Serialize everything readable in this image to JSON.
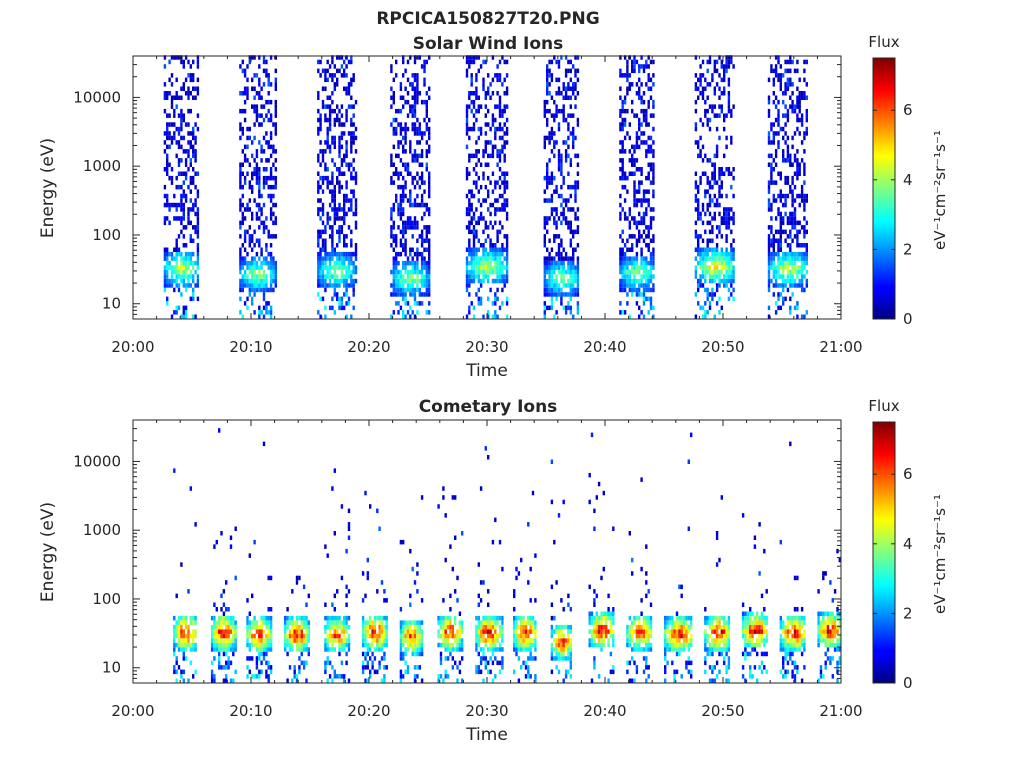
{
  "figure_title": "RPCICA150827T20.PNG",
  "chart_data": [
    {
      "type": "heatmap",
      "title": "Solar Wind Ions",
      "xlabel": "Time",
      "ylabel": "Energy (eV)",
      "x_ticks": [
        "20:00",
        "20:10",
        "20:20",
        "20:30",
        "20:40",
        "20:50",
        "21:00"
      ],
      "x_range_minutes": [
        0,
        60
      ],
      "y_scale": "log",
      "y_ticks": [
        "10",
        "100",
        "1000",
        "10000"
      ],
      "y_range": [
        6,
        40000
      ],
      "colorbar": {
        "title": "Flux",
        "label": "eV⁻¹cm⁻²sr⁻¹s⁻¹",
        "ticks": [
          "0",
          "2",
          "4",
          "6"
        ],
        "range": [
          0,
          7.5
        ],
        "colormap": "jet"
      },
      "bursts": [
        {
          "start_min": 2.6,
          "end_min": 5.6,
          "peak_energy_ev": 30,
          "peak_flux": 4.5
        },
        {
          "start_min": 9.0,
          "end_min": 12.0,
          "peak_energy_ev": 25,
          "peak_flux": 4.0
        },
        {
          "start_min": 15.6,
          "end_min": 18.8,
          "peak_energy_ev": 28,
          "peak_flux": 4.0
        },
        {
          "start_min": 21.8,
          "end_min": 25.0,
          "peak_energy_ev": 22,
          "peak_flux": 4.0
        },
        {
          "start_min": 28.2,
          "end_min": 31.6,
          "peak_energy_ev": 32,
          "peak_flux": 4.5
        },
        {
          "start_min": 34.8,
          "end_min": 37.8,
          "peak_energy_ev": 22,
          "peak_flux": 4.0
        },
        {
          "start_min": 41.2,
          "end_min": 44.2,
          "peak_energy_ev": 26,
          "peak_flux": 4.0
        },
        {
          "start_min": 47.6,
          "end_min": 51.0,
          "peak_energy_ev": 32,
          "peak_flux": 5.0
        },
        {
          "start_min": 53.8,
          "end_min": 57.2,
          "peak_energy_ev": 30,
          "peak_flux": 4.5
        }
      ]
    },
    {
      "type": "heatmap",
      "title": "Cometary Ions",
      "xlabel": "Time",
      "ylabel": "Energy (eV)",
      "x_ticks": [
        "20:00",
        "20:10",
        "20:20",
        "20:30",
        "20:40",
        "20:50",
        "21:00"
      ],
      "x_range_minutes": [
        0,
        60
      ],
      "y_scale": "log",
      "y_ticks": [
        "10",
        "100",
        "1000",
        "10000"
      ],
      "y_range": [
        6,
        40000
      ],
      "colorbar": {
        "title": "Flux",
        "label": "eV⁻¹cm⁻²sr⁻¹s⁻¹",
        "ticks": [
          "0",
          "2",
          "4",
          "6"
        ],
        "range": [
          0,
          7.5
        ],
        "colormap": "jet"
      },
      "bursts": [
        {
          "start_min": 3.4,
          "end_min": 5.4,
          "peak_energy_ev": 30,
          "peak_flux": 7.0
        },
        {
          "start_min": 6.6,
          "end_min": 8.6,
          "peak_energy_ev": 30,
          "peak_flux": 7.0
        },
        {
          "start_min": 9.6,
          "end_min": 11.6,
          "peak_energy_ev": 28,
          "peak_flux": 7.0
        },
        {
          "start_min": 12.8,
          "end_min": 14.8,
          "peak_energy_ev": 28,
          "peak_flux": 7.0
        },
        {
          "start_min": 16.2,
          "end_min": 18.2,
          "peak_energy_ev": 28,
          "peak_flux": 6.5
        },
        {
          "start_min": 19.4,
          "end_min": 21.4,
          "peak_energy_ev": 30,
          "peak_flux": 7.0
        },
        {
          "start_min": 22.6,
          "end_min": 24.4,
          "peak_energy_ev": 26,
          "peak_flux": 6.5
        },
        {
          "start_min": 25.8,
          "end_min": 27.8,
          "peak_energy_ev": 30,
          "peak_flux": 7.0
        },
        {
          "start_min": 29.0,
          "end_min": 31.2,
          "peak_energy_ev": 30,
          "peak_flux": 7.0
        },
        {
          "start_min": 32.2,
          "end_min": 34.2,
          "peak_energy_ev": 30,
          "peak_flux": 7.0
        },
        {
          "start_min": 35.4,
          "end_min": 37.2,
          "peak_energy_ev": 22,
          "peak_flux": 6.5
        },
        {
          "start_min": 38.6,
          "end_min": 40.8,
          "peak_energy_ev": 32,
          "peak_flux": 7.0
        },
        {
          "start_min": 41.8,
          "end_min": 44.0,
          "peak_energy_ev": 30,
          "peak_flux": 6.5
        },
        {
          "start_min": 45.0,
          "end_min": 47.4,
          "peak_energy_ev": 28,
          "peak_flux": 7.0
        },
        {
          "start_min": 48.4,
          "end_min": 50.6,
          "peak_energy_ev": 30,
          "peak_flux": 7.0
        },
        {
          "start_min": 51.6,
          "end_min": 53.8,
          "peak_energy_ev": 32,
          "peak_flux": 7.0
        },
        {
          "start_min": 54.8,
          "end_min": 57.0,
          "peak_energy_ev": 30,
          "peak_flux": 7.0
        },
        {
          "start_min": 58.0,
          "end_min": 60.0,
          "peak_energy_ev": 32,
          "peak_flux": 7.0
        }
      ]
    }
  ]
}
